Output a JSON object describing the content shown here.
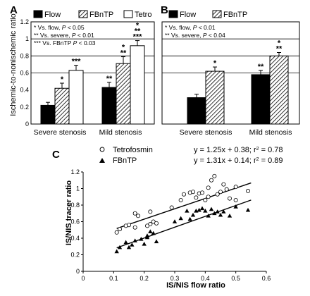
{
  "chart_data": [
    {
      "panel": "A",
      "type": "bar",
      "ylabel": "Ischemic-to-nonischemic ratio",
      "ylim": [
        0,
        1.2
      ],
      "yticks": [
        "0",
        "0.2",
        "0.4",
        "0.6",
        "0.8",
        "1",
        "1.2"
      ],
      "categories": [
        "Severe stenosis",
        "Mild stenosis"
      ],
      "series": [
        {
          "name": "Flow",
          "values": [
            0.22,
            0.43
          ],
          "errors": [
            0.035,
            0.06
          ],
          "fill": "solid",
          "annotations": [
            "",
            "**"
          ]
        },
        {
          "name": "FBnTP",
          "values": [
            0.42,
            0.71
          ],
          "errors": [
            0.06,
            0.08
          ],
          "fill": "hatched",
          "annotations": [
            "*",
            "*\n**"
          ]
        },
        {
          "name": "Tetro",
          "values": [
            0.63,
            0.92
          ],
          "errors": [
            0.06,
            0.06
          ],
          "fill": "open",
          "annotations": [
            "***",
            "*\n**\n***"
          ]
        }
      ],
      "notes": [
        {
          "marker": "*",
          "text": "Vs. flow, ",
          "p": "P",
          "rest": " < 0.05"
        },
        {
          "marker": "**",
          "text": "Vs. severe, ",
          "p": "P",
          "rest": " < 0.01"
        },
        {
          "marker": "***",
          "text": "Vs. FBnTP ",
          "p": "P",
          "rest": " < 0.03"
        }
      ]
    },
    {
      "panel": "B",
      "type": "bar",
      "ylim": [
        0,
        1.2
      ],
      "categories": [
        "Severe stenosis",
        "Mild stenosis"
      ],
      "series": [
        {
          "name": "Flow",
          "values": [
            0.31,
            0.58
          ],
          "errors": [
            0.04,
            0.05
          ],
          "fill": "solid",
          "annotations": [
            "",
            "**"
          ]
        },
        {
          "name": "FBnTP",
          "values": [
            0.62,
            0.8
          ],
          "errors": [
            0.05,
            0.04
          ],
          "fill": "hatched",
          "annotations": [
            "*",
            "*\n**"
          ]
        }
      ],
      "notes": [
        {
          "marker": "*",
          "text": "Vs. flow, ",
          "p": "P",
          "rest": " < 0.01"
        },
        {
          "marker": "**",
          "text": "Vs. severe, ",
          "p": "P",
          "rest": " < 0.04"
        }
      ]
    },
    {
      "panel": "C",
      "type": "scatter",
      "xlabel": "IS/NIS flow ratio",
      "ylabel": "IS/NIS tracer ratio",
      "xlim": [
        0,
        0.6
      ],
      "ylim": [
        0,
        1.2
      ],
      "xticks": [
        "0",
        "0.1",
        "0.2",
        "0.3",
        "0.4",
        "0.5",
        "0.6"
      ],
      "yticks": [
        "0",
        "0.2",
        "0.4",
        "0.6",
        "0.8",
        "1",
        "1.2"
      ],
      "series": [
        {
          "name": "Tetrofosmin",
          "marker": "open-circle",
          "equation": "y = 1.25x + 0.38;  r",
          "r2": " = 0.78",
          "fit": {
            "slope": 1.25,
            "intercept": 0.38,
            "x": [
              0.11,
              0.55
            ]
          },
          "points": [
            [
              0.11,
              0.47
            ],
            [
              0.12,
              0.51
            ],
            [
              0.14,
              0.55
            ],
            [
              0.15,
              0.56
            ],
            [
              0.17,
              0.53
            ],
            [
              0.17,
              0.7
            ],
            [
              0.18,
              0.67
            ],
            [
              0.21,
              0.55
            ],
            [
              0.22,
              0.57
            ],
            [
              0.22,
              0.72
            ],
            [
              0.23,
              0.6
            ],
            [
              0.24,
              0.58
            ],
            [
              0.29,
              0.77
            ],
            [
              0.32,
              0.86
            ],
            [
              0.33,
              0.93
            ],
            [
              0.35,
              0.95
            ],
            [
              0.36,
              0.96
            ],
            [
              0.37,
              0.89
            ],
            [
              0.38,
              0.94
            ],
            [
              0.39,
              0.95
            ],
            [
              0.4,
              0.86
            ],
            [
              0.41,
              0.9
            ],
            [
              0.41,
              1.01
            ],
            [
              0.42,
              1.1
            ],
            [
              0.43,
              1.15
            ],
            [
              0.44,
              0.93
            ],
            [
              0.45,
              0.96
            ],
            [
              0.46,
              1.05
            ],
            [
              0.47,
              0.99
            ],
            [
              0.48,
              0.88
            ],
            [
              0.5,
              0.86
            ],
            [
              0.5,
              1.02
            ],
            [
              0.54,
              0.97
            ]
          ]
        },
        {
          "name": "FBnTP",
          "marker": "filled-triangle",
          "equation": "y = 1.31x + 0.14;  r",
          "r2": " = 0.89",
          "fit": {
            "slope": 1.31,
            "intercept": 0.14,
            "x": [
              0.11,
              0.55
            ]
          },
          "points": [
            [
              0.11,
              0.24
            ],
            [
              0.12,
              0.29
            ],
            [
              0.14,
              0.35
            ],
            [
              0.15,
              0.29
            ],
            [
              0.16,
              0.32
            ],
            [
              0.17,
              0.37
            ],
            [
              0.19,
              0.39
            ],
            [
              0.2,
              0.33
            ],
            [
              0.21,
              0.43
            ],
            [
              0.21,
              0.41
            ],
            [
              0.22,
              0.48
            ],
            [
              0.23,
              0.46
            ],
            [
              0.24,
              0.36
            ],
            [
              0.3,
              0.6
            ],
            [
              0.32,
              0.64
            ],
            [
              0.34,
              0.73
            ],
            [
              0.35,
              0.63
            ],
            [
              0.36,
              0.68
            ],
            [
              0.37,
              0.73
            ],
            [
              0.38,
              0.74
            ],
            [
              0.39,
              0.76
            ],
            [
              0.4,
              0.73
            ],
            [
              0.41,
              0.67
            ],
            [
              0.42,
              0.75
            ],
            [
              0.43,
              0.7
            ],
            [
              0.44,
              0.72
            ],
            [
              0.45,
              0.68
            ],
            [
              0.46,
              0.72
            ],
            [
              0.48,
              0.67
            ],
            [
              0.5,
              0.78
            ],
            [
              0.54,
              0.74
            ]
          ]
        }
      ]
    }
  ],
  "panel_letters": [
    "A",
    "B",
    "C"
  ]
}
